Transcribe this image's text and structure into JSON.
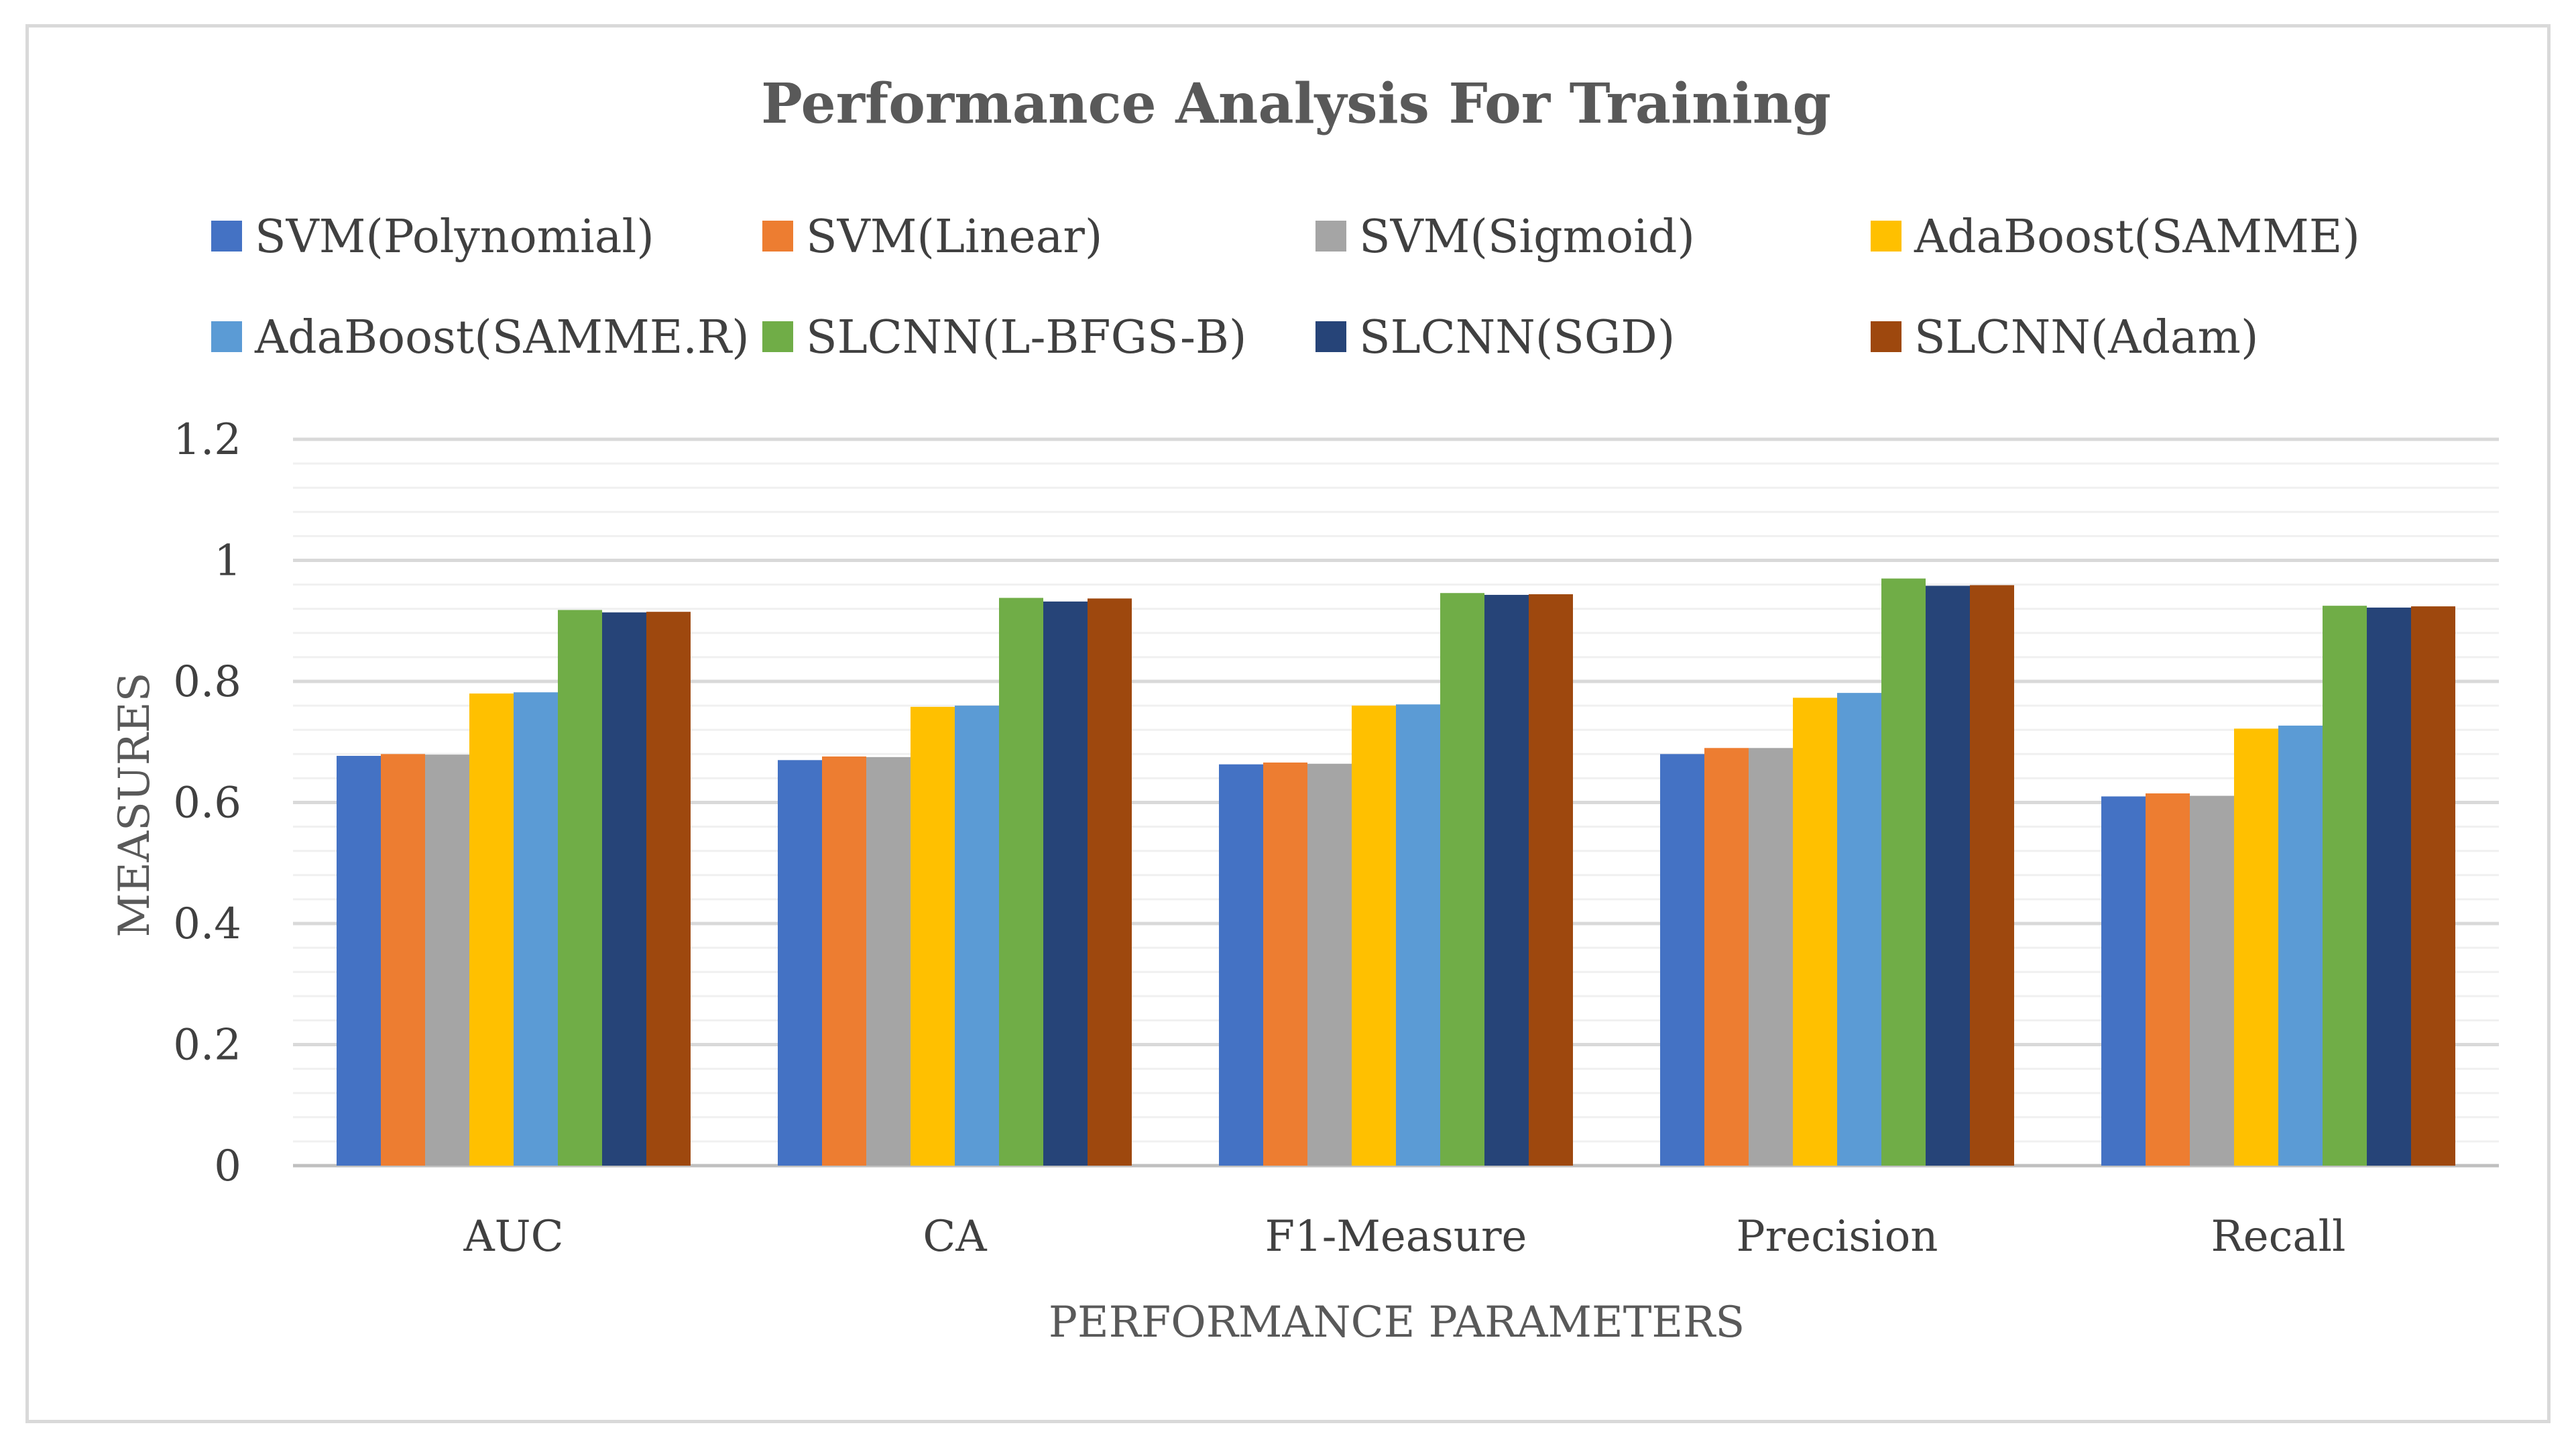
{
  "chart_data": {
    "type": "bar",
    "title": "Performance Analysis For Training",
    "xlabel": "PERFORMANCE PARAMETERS",
    "ylabel": "MEASURES",
    "ylim": [
      0,
      1.2
    ],
    "yticks": [
      "0",
      "0.2",
      "0.4",
      "0.6",
      "0.8",
      "1",
      "1.2"
    ],
    "ytick_values": [
      0,
      0.2,
      0.4,
      0.6,
      0.8,
      1,
      1.2
    ],
    "grid": true,
    "legend_position": "top",
    "categories": [
      "AUC",
      "CA",
      "F1-Measure",
      "Precision",
      "Recall"
    ],
    "series": [
      {
        "name": "SVM(Polynomial)",
        "color": "#4472C4",
        "values": [
          0.677,
          0.67,
          0.663,
          0.68,
          0.61
        ]
      },
      {
        "name": "SVM(Linear)",
        "color": "#ED7D31",
        "values": [
          0.68,
          0.676,
          0.666,
          0.69,
          0.615
        ]
      },
      {
        "name": "SVM(Sigmoid)",
        "color": "#A5A5A5",
        "values": [
          0.679,
          0.675,
          0.664,
          0.69,
          0.611
        ]
      },
      {
        "name": "AdaBoost(SAMME)",
        "color": "#FFC000",
        "values": [
          0.78,
          0.758,
          0.76,
          0.773,
          0.722
        ]
      },
      {
        "name": "AdaBoost(SAMME.R)",
        "color": "#5B9BD5",
        "values": [
          0.782,
          0.76,
          0.762,
          0.781,
          0.727
        ]
      },
      {
        "name": "SLCNN(L-BFGS-B)",
        "color": "#70AD47",
        "values": [
          0.918,
          0.938,
          0.946,
          0.97,
          0.925
        ]
      },
      {
        "name": "SLCNN(SGD)",
        "color": "#264478",
        "values": [
          0.914,
          0.932,
          0.943,
          0.958,
          0.922
        ]
      },
      {
        "name": "SLCNN(Adam)",
        "color": "#9E480E",
        "values": [
          0.915,
          0.937,
          0.944,
          0.959,
          0.924
        ]
      }
    ]
  }
}
